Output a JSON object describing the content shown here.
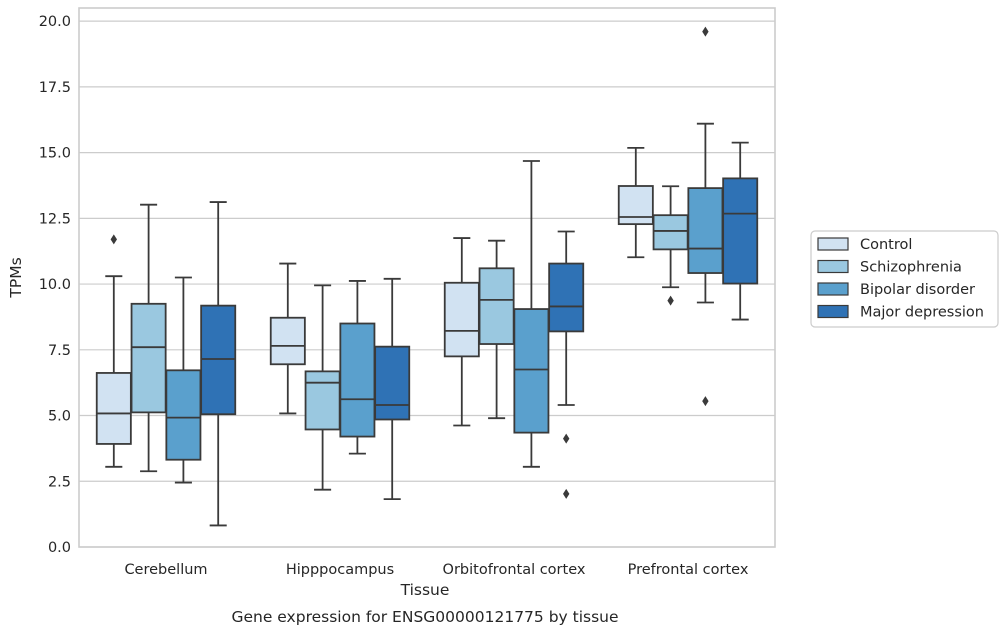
{
  "chart_data": {
    "type": "boxplot",
    "caption": "Gene expression for ENSG00000121775 by tissue",
    "xlabel": "Tissue",
    "ylabel": "TPMs",
    "ylim": [
      0,
      20.5
    ],
    "yticks": [
      "0.0",
      "2.5",
      "5.0",
      "7.5",
      "10.0",
      "12.5",
      "15.0",
      "17.5",
      "20.0"
    ],
    "grid": true,
    "legend_position": "right",
    "categories": [
      "Cerebellum",
      "Hipppocampus",
      "Orbitofrontal cortex",
      "Prefrontal cortex"
    ],
    "series": [
      {
        "name": "Control",
        "color": "#d1e2f2",
        "boxes": [
          {
            "whisker_low": 3.05,
            "q1": 3.92,
            "median": 5.08,
            "q3": 6.62,
            "whisker_high": 10.3,
            "outliers": [
              11.7
            ]
          },
          {
            "whisker_low": 5.08,
            "q1": 6.95,
            "median": 7.65,
            "q3": 8.72,
            "whisker_high": 10.78,
            "outliers": []
          },
          {
            "whisker_low": 4.62,
            "q1": 7.25,
            "median": 8.22,
            "q3": 10.05,
            "whisker_high": 11.75,
            "outliers": []
          },
          {
            "whisker_low": 11.02,
            "q1": 12.28,
            "median": 12.55,
            "q3": 13.73,
            "whisker_high": 15.18,
            "outliers": []
          }
        ]
      },
      {
        "name": "Schizophrenia",
        "color": "#9ac8e0",
        "boxes": [
          {
            "whisker_low": 2.88,
            "q1": 5.12,
            "median": 7.6,
            "q3": 9.25,
            "whisker_high": 13.02,
            "outliers": []
          },
          {
            "whisker_low": 2.18,
            "q1": 4.47,
            "median": 6.25,
            "q3": 6.68,
            "whisker_high": 9.95,
            "outliers": []
          },
          {
            "whisker_low": 4.9,
            "q1": 7.72,
            "median": 9.4,
            "q3": 10.6,
            "whisker_high": 11.65,
            "outliers": []
          },
          {
            "whisker_low": 9.88,
            "q1": 11.32,
            "median": 12.02,
            "q3": 12.62,
            "whisker_high": 13.72,
            "outliers": [
              9.37
            ]
          }
        ]
      },
      {
        "name": "Bipolar disorder",
        "color": "#5aa0cd",
        "boxes": [
          {
            "whisker_low": 2.45,
            "q1": 3.32,
            "median": 4.92,
            "q3": 6.72,
            "whisker_high": 10.25,
            "outliers": []
          },
          {
            "whisker_low": 3.55,
            "q1": 4.2,
            "median": 5.62,
            "q3": 8.5,
            "whisker_high": 10.12,
            "outliers": []
          },
          {
            "whisker_low": 3.05,
            "q1": 4.35,
            "median": 6.75,
            "q3": 9.05,
            "whisker_high": 14.68,
            "outliers": []
          },
          {
            "whisker_low": 9.3,
            "q1": 10.42,
            "median": 11.35,
            "q3": 13.65,
            "whisker_high": 16.1,
            "outliers": [
              19.6,
              5.55
            ]
          }
        ]
      },
      {
        "name": "Major depression",
        "color": "#2f72b5",
        "boxes": [
          {
            "whisker_low": 0.82,
            "q1": 5.05,
            "median": 7.15,
            "q3": 9.18,
            "whisker_high": 13.12,
            "outliers": []
          },
          {
            "whisker_low": 1.82,
            "q1": 4.85,
            "median": 5.4,
            "q3": 7.62,
            "whisker_high": 10.2,
            "outliers": []
          },
          {
            "whisker_low": 5.4,
            "q1": 8.2,
            "median": 9.15,
            "q3": 10.78,
            "whisker_high": 12.0,
            "outliers": [
              4.12,
              2.02
            ]
          },
          {
            "whisker_low": 8.65,
            "q1": 10.02,
            "median": 12.68,
            "q3": 14.02,
            "whisker_high": 15.38,
            "outliers": []
          }
        ]
      }
    ]
  }
}
